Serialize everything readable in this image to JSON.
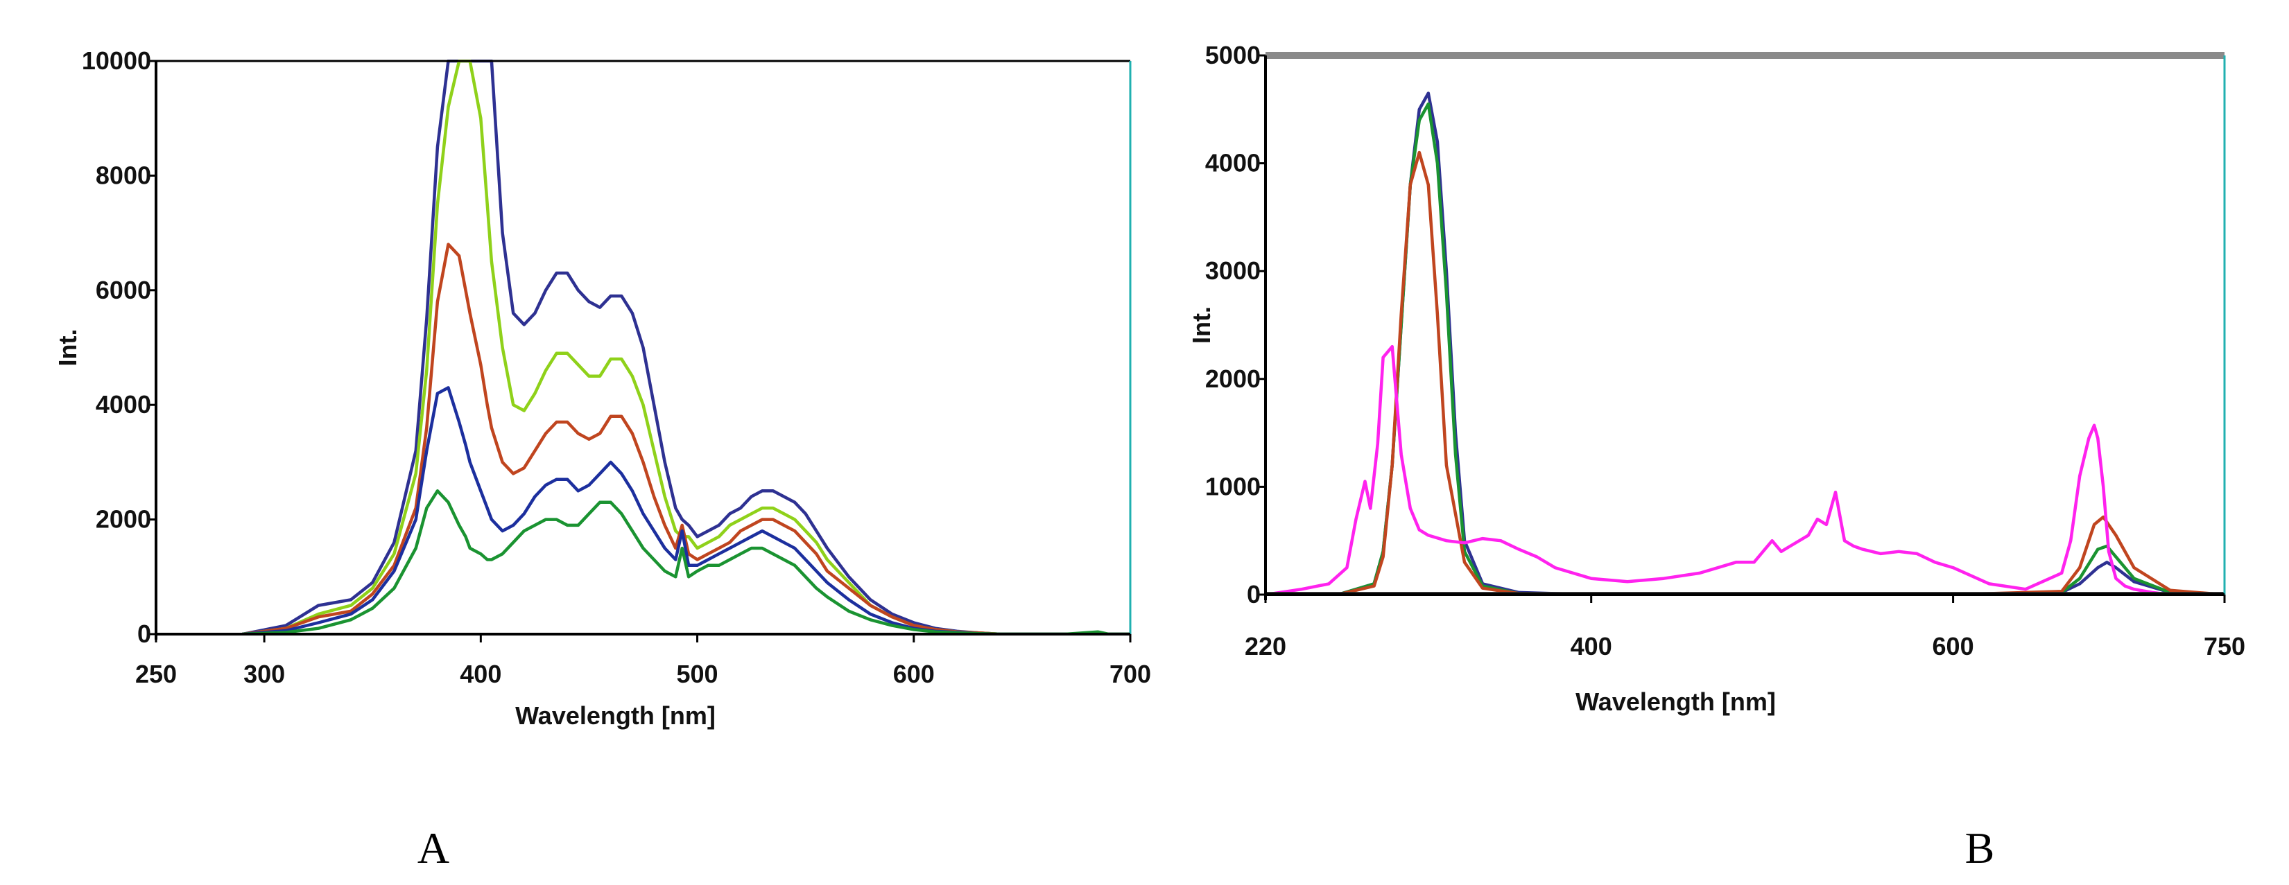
{
  "chart_data": [
    {
      "panel_label": "A",
      "type": "line",
      "xlabel": "Wavelength [nm]",
      "ylabel": "Int.",
      "xlim": [
        250,
        700
      ],
      "ylim": [
        0,
        10000
      ],
      "xticks": [
        250,
        300,
        400,
        500,
        600,
        700
      ],
      "yticks": [
        0,
        2000,
        4000,
        6000,
        8000,
        10000
      ],
      "grid": false,
      "colors": {
        "axis": "#000000",
        "right_frame": "#20b0b0"
      },
      "series": [
        {
          "color": "#2e3192",
          "x": [
            290,
            310,
            325,
            340,
            350,
            360,
            370,
            375,
            380,
            385,
            390,
            393,
            395,
            400,
            403,
            405,
            410,
            415,
            420,
            425,
            430,
            435,
            440,
            445,
            450,
            455,
            460,
            465,
            470,
            475,
            480,
            485,
            490,
            493,
            496,
            500,
            505,
            510,
            515,
            520,
            525,
            530,
            535,
            540,
            545,
            550,
            555,
            560,
            570,
            580,
            590,
            600,
            610,
            620,
            630,
            640,
            650,
            670,
            690,
            700
          ],
          "y": [
            0,
            150,
            500,
            600,
            900,
            1600,
            3200,
            5500,
            8500,
            10000,
            10000,
            10000,
            10000,
            10000,
            10000,
            10000,
            7000,
            5600,
            5400,
            5600,
            6000,
            6300,
            6300,
            6000,
            5800,
            5700,
            5900,
            5900,
            5600,
            5000,
            4000,
            3000,
            2200,
            2000,
            1900,
            1700,
            1800,
            1900,
            2100,
            2200,
            2400,
            2500,
            2500,
            2400,
            2300,
            2100,
            1800,
            1500,
            1000,
            600,
            350,
            200,
            100,
            50,
            20,
            0,
            0,
            0,
            0,
            0
          ]
        },
        {
          "color": "#8fd11a",
          "x": [
            290,
            310,
            325,
            340,
            350,
            360,
            370,
            375,
            380,
            385,
            390,
            393,
            395,
            400,
            403,
            405,
            410,
            415,
            420,
            425,
            430,
            435,
            440,
            445,
            450,
            455,
            460,
            465,
            470,
            475,
            480,
            485,
            490,
            493,
            496,
            500,
            505,
            510,
            515,
            520,
            525,
            530,
            535,
            540,
            545,
            550,
            555,
            560,
            570,
            580,
            590,
            600,
            610,
            620,
            630,
            640,
            650,
            670,
            690,
            700
          ],
          "y": [
            0,
            100,
            350,
            500,
            800,
            1400,
            2800,
            4600,
            7500,
            9200,
            10000,
            10000,
            10000,
            9000,
            7500,
            6500,
            5000,
            4000,
            3900,
            4200,
            4600,
            4900,
            4900,
            4700,
            4500,
            4500,
            4800,
            4800,
            4500,
            4000,
            3200,
            2400,
            1800,
            1700,
            1700,
            1500,
            1600,
            1700,
            1900,
            2000,
            2100,
            2200,
            2200,
            2100,
            2000,
            1800,
            1600,
            1300,
            900,
            500,
            300,
            150,
            80,
            40,
            20,
            0,
            0,
            0,
            0,
            0
          ]
        },
        {
          "color": "#c0451f",
          "x": [
            290,
            310,
            325,
            340,
            350,
            360,
            370,
            375,
            380,
            385,
            390,
            393,
            395,
            400,
            403,
            405,
            410,
            415,
            420,
            425,
            430,
            435,
            440,
            445,
            450,
            455,
            460,
            465,
            470,
            475,
            480,
            485,
            490,
            493,
            496,
            500,
            505,
            510,
            515,
            520,
            525,
            530,
            535,
            540,
            545,
            550,
            555,
            560,
            570,
            580,
            590,
            600,
            610,
            620,
            630,
            640,
            650,
            670,
            690,
            700
          ],
          "y": [
            0,
            100,
            300,
            400,
            700,
            1200,
            2200,
            3600,
            5800,
            6800,
            6600,
            6000,
            5600,
            4700,
            4000,
            3600,
            3000,
            2800,
            2900,
            3200,
            3500,
            3700,
            3700,
            3500,
            3400,
            3500,
            3800,
            3800,
            3500,
            3000,
            2400,
            1900,
            1500,
            1900,
            1400,
            1300,
            1400,
            1500,
            1600,
            1800,
            1900,
            2000,
            2000,
            1900,
            1800,
            1600,
            1400,
            1100,
            800,
            500,
            300,
            150,
            80,
            40,
            20,
            0,
            0,
            0,
            0,
            0
          ]
        },
        {
          "color": "#1c2f9e",
          "x": [
            290,
            310,
            325,
            340,
            350,
            360,
            370,
            375,
            380,
            385,
            390,
            393,
            395,
            400,
            403,
            405,
            410,
            415,
            420,
            425,
            430,
            435,
            440,
            445,
            450,
            455,
            460,
            465,
            470,
            475,
            480,
            485,
            490,
            493,
            496,
            500,
            505,
            510,
            515,
            520,
            525,
            530,
            535,
            540,
            545,
            550,
            555,
            560,
            570,
            580,
            590,
            600,
            610,
            620,
            630,
            640,
            650,
            670,
            690,
            700
          ],
          "y": [
            0,
            60,
            200,
            350,
            600,
            1100,
            2000,
            3200,
            4200,
            4300,
            3700,
            3300,
            3000,
            2500,
            2200,
            2000,
            1800,
            1900,
            2100,
            2400,
            2600,
            2700,
            2700,
            2500,
            2600,
            2800,
            3000,
            2800,
            2500,
            2100,
            1800,
            1500,
            1300,
            1800,
            1200,
            1200,
            1300,
            1400,
            1500,
            1600,
            1700,
            1800,
            1700,
            1600,
            1500,
            1300,
            1100,
            900,
            600,
            350,
            200,
            100,
            50,
            30,
            10,
            0,
            0,
            0,
            0,
            0
          ]
        },
        {
          "color": "#1a9331",
          "x": [
            290,
            310,
            325,
            340,
            350,
            360,
            370,
            375,
            380,
            385,
            390,
            393,
            395,
            400,
            403,
            405,
            410,
            415,
            420,
            425,
            430,
            435,
            440,
            445,
            450,
            455,
            460,
            465,
            470,
            475,
            480,
            485,
            490,
            493,
            496,
            500,
            505,
            510,
            515,
            520,
            525,
            530,
            535,
            540,
            545,
            550,
            555,
            560,
            570,
            580,
            590,
            600,
            610,
            620,
            630,
            640,
            650,
            670,
            685,
            690,
            700
          ],
          "y": [
            0,
            30,
            100,
            250,
            450,
            800,
            1500,
            2200,
            2500,
            2300,
            1900,
            1700,
            1500,
            1400,
            1300,
            1300,
            1400,
            1600,
            1800,
            1900,
            2000,
            2000,
            1900,
            1900,
            2100,
            2300,
            2300,
            2100,
            1800,
            1500,
            1300,
            1100,
            1000,
            1500,
            1000,
            1100,
            1200,
            1200,
            1300,
            1400,
            1500,
            1500,
            1400,
            1300,
            1200,
            1000,
            800,
            650,
            400,
            250,
            150,
            80,
            40,
            20,
            10,
            0,
            0,
            0,
            40,
            0,
            0
          ]
        }
      ]
    },
    {
      "panel_label": "B",
      "type": "line",
      "xlabel": "Wavelength [nm]",
      "ylabel": "Int.",
      "xlim": [
        220,
        750
      ],
      "ylim": [
        0,
        5000
      ],
      "xticks": [
        220,
        400,
        600,
        750
      ],
      "yticks": [
        0,
        1000,
        2000,
        3000,
        4000,
        5000
      ],
      "grid": false,
      "colors": {
        "axis": "#000000",
        "top_frame": "#8a8a8a",
        "right_frame": "#20b0b0",
        "baseline": "#333333"
      },
      "series": [
        {
          "color": "#2e3192",
          "x": [
            220,
            260,
            280,
            285,
            290,
            295,
            300,
            305,
            310,
            315,
            320,
            325,
            330,
            340,
            360,
            400,
            500,
            600,
            660,
            670,
            680,
            685,
            690,
            700,
            720,
            750
          ],
          "y": [
            0,
            0,
            100,
            400,
            1200,
            2500,
            3800,
            4500,
            4650,
            4200,
            3000,
            1500,
            500,
            100,
            20,
            0,
            0,
            0,
            20,
            100,
            250,
            300,
            250,
            120,
            20,
            0
          ]
        },
        {
          "color": "#1a9331",
          "x": [
            220,
            260,
            280,
            285,
            290,
            295,
            300,
            305,
            310,
            315,
            320,
            325,
            330,
            340,
            360,
            400,
            500,
            600,
            660,
            670,
            680,
            685,
            690,
            700,
            720,
            750
          ],
          "y": [
            0,
            0,
            100,
            400,
            1200,
            2500,
            3800,
            4400,
            4550,
            4000,
            2800,
            1300,
            400,
            80,
            10,
            0,
            0,
            0,
            20,
            150,
            420,
            450,
            350,
            150,
            20,
            0
          ]
        },
        {
          "color": "#c0451f",
          "x": [
            220,
            260,
            280,
            285,
            290,
            295,
            300,
            305,
            310,
            315,
            320,
            330,
            340,
            360,
            400,
            500,
            600,
            660,
            670,
            678,
            683,
            690,
            700,
            720,
            750
          ],
          "y": [
            0,
            0,
            80,
            350,
            1200,
            2600,
            3800,
            4100,
            3800,
            2600,
            1200,
            300,
            60,
            10,
            0,
            0,
            0,
            30,
            250,
            650,
            720,
            550,
            250,
            40,
            0
          ]
        },
        {
          "color": "#ff22ee",
          "x": [
            220,
            240,
            255,
            265,
            270,
            275,
            278,
            282,
            285,
            290,
            292,
            295,
            300,
            305,
            310,
            320,
            330,
            340,
            350,
            360,
            370,
            380,
            400,
            420,
            440,
            460,
            480,
            490,
            500,
            505,
            510,
            520,
            525,
            530,
            535,
            540,
            545,
            550,
            560,
            570,
            580,
            590,
            600,
            620,
            640,
            660,
            665,
            670,
            675,
            678,
            680,
            683,
            686,
            690,
            695,
            700,
            710,
            720,
            750
          ],
          "y": [
            0,
            50,
            100,
            250,
            700,
            1050,
            800,
            1400,
            2200,
            2300,
            1900,
            1300,
            800,
            600,
            550,
            500,
            480,
            520,
            500,
            420,
            350,
            250,
            150,
            120,
            150,
            200,
            300,
            300,
            500,
            400,
            450,
            550,
            700,
            650,
            950,
            500,
            450,
            420,
            380,
            400,
            380,
            300,
            250,
            100,
            50,
            200,
            500,
            1100,
            1450,
            1570,
            1450,
            1000,
            400,
            150,
            80,
            50,
            20,
            0,
            0
          ]
        },
        {
          "color": "#222222",
          "x": [
            220,
            750
          ],
          "y": [
            10,
            10
          ]
        }
      ]
    }
  ]
}
